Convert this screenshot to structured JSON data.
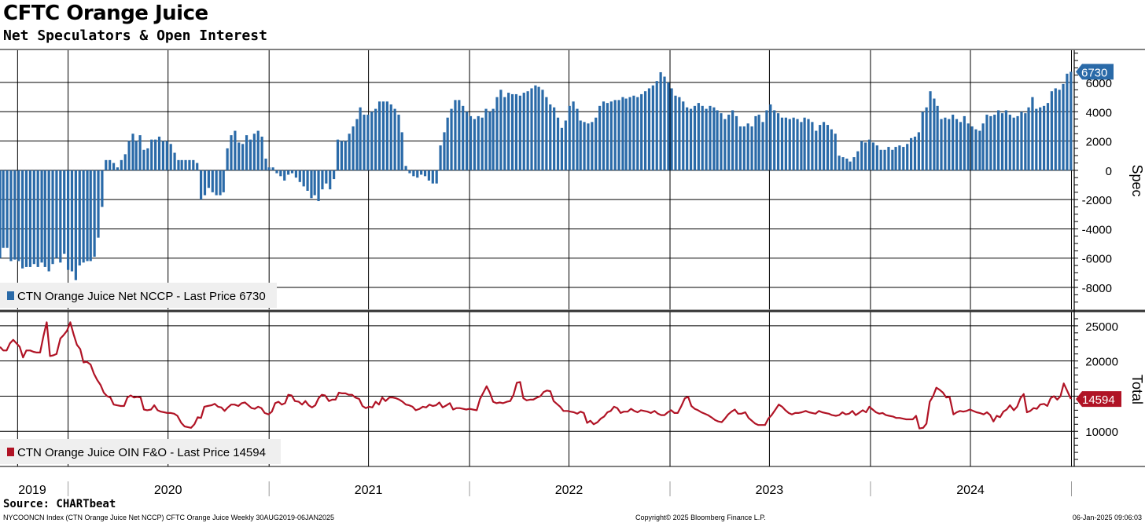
{
  "header": {
    "title": "CFTC Orange Juice",
    "subtitle": "Net Speculators & Open Interest"
  },
  "footer": {
    "source": "Source: CHARTbeat",
    "index_desc": "NYCOONCN Index (CTN Orange Juice Net NCCP) CFTC Orange Juice  Weekly 30AUG2019-06JAN2025",
    "copyright": "Copyright© 2025 Bloomberg Finance L.P.",
    "timestamp": "06-Jan-2025 09:06:03"
  },
  "colors": {
    "spec_bar": "#2a6aa8",
    "total_line": "#b01325",
    "grid": "#000000",
    "legend_bg": "#efefef"
  },
  "chart_data": [
    {
      "type": "bar",
      "ylabel": "Spec",
      "ylim": [
        -9500,
        8200
      ],
      "yticks": [
        -8000,
        -6000,
        -4000,
        -2000,
        0,
        2000,
        4000,
        6000
      ],
      "grid": true,
      "last_value_label": "6730",
      "legend": "CTN Orange Juice Net NCCP - Last Price 6730",
      "x_start": "2019-08-30",
      "x_end": "2025-01-06",
      "series": [
        {
          "name": "CTN Orange Juice Net NCCP",
          "frequency": "weekly",
          "values": [
            -6000,
            -5300,
            -5300,
            -6200,
            -6100,
            -6200,
            -6700,
            -6600,
            -6600,
            -6400,
            -6600,
            -6300,
            -6600,
            -6900,
            -6400,
            -6000,
            -6300,
            -5700,
            -6800,
            -6900,
            -7500,
            -6500,
            -6300,
            -6200,
            -6200,
            -5900,
            -4600,
            -2500,
            700,
            700,
            500,
            200,
            700,
            1100,
            2000,
            2500,
            2000,
            2400,
            1400,
            1500,
            2100,
            2100,
            2300,
            2000,
            2000,
            1800,
            1200,
            700,
            700,
            700,
            700,
            700,
            500,
            -2000,
            -1700,
            -1200,
            -1500,
            -1700,
            -1700,
            -1500,
            1500,
            2400,
            2700,
            1900,
            1800,
            2400,
            2100,
            2500,
            2700,
            2300,
            800,
            200,
            200,
            -200,
            -400,
            -700,
            -300,
            -200,
            -500,
            -800,
            -1100,
            -1400,
            -1900,
            -1700,
            -2100,
            -1300,
            -900,
            -1300,
            -600,
            2100,
            2000,
            2000,
            2500,
            3000,
            3500,
            4300,
            3800,
            3800,
            4000,
            4200,
            4700,
            4700,
            4700,
            4500,
            4200,
            3800,
            2600,
            300,
            -200,
            -400,
            -500,
            -300,
            -400,
            -700,
            -900,
            -900,
            1700,
            2600,
            3600,
            4200,
            4800,
            4800,
            4400,
            4000,
            3700,
            3500,
            3700,
            3600,
            4200,
            4000,
            4200,
            5000,
            5500,
            5000,
            5300,
            5200,
            5200,
            5100,
            5300,
            5400,
            5600,
            5800,
            5700,
            5500,
            5000,
            4500,
            4300,
            3600,
            2900,
            3400,
            4400,
            4700,
            4200,
            3400,
            3300,
            3200,
            3300,
            3600,
            4400,
            4700,
            4600,
            4700,
            4800,
            4800,
            5000,
            4900,
            5000,
            5100,
            5000,
            5200,
            5400,
            5600,
            5800,
            6100,
            6700,
            6400,
            6000,
            5600,
            5100,
            5000,
            4700,
            4300,
            4200,
            4400,
            4600,
            4400,
            4200,
            4400,
            4300,
            4100,
            3900,
            3500,
            3800,
            4100,
            3700,
            3000,
            3000,
            3200,
            3000,
            3700,
            3800,
            3300,
            4100,
            4500,
            4100,
            3900,
            3600,
            3600,
            3500,
            3600,
            3500,
            3300,
            3600,
            3500,
            3300,
            2700,
            3100,
            3300,
            3100,
            2800,
            2500,
            1000,
            900,
            800,
            600,
            900,
            1300,
            2000,
            1900,
            2100,
            1900,
            1700,
            1400,
            1400,
            1600,
            1400,
            1600,
            1700,
            1600,
            1800,
            2200,
            2300,
            2600,
            4000,
            4300,
            5400,
            4900,
            4400,
            3500,
            3600,
            3500,
            3800,
            3500,
            3300,
            3700,
            3200,
            3000,
            2800,
            2700,
            3200,
            3800,
            3700,
            3800,
            4100,
            3900,
            4100,
            3800,
            3600,
            3700,
            4000,
            3900,
            4300,
            5000,
            4200,
            4300,
            4400,
            4600,
            5400,
            5600,
            5500,
            5900,
            6600,
            6730
          ]
        }
      ]
    },
    {
      "type": "line",
      "ylabel": "Total",
      "ylim": [
        5000,
        27000
      ],
      "yticks": [
        10000,
        15000,
        20000,
        25000
      ],
      "grid": true,
      "last_value_label": "14594",
      "legend": "CTN Orange Juice OIN F&O - Last Price 14594",
      "x_start": "2019-08-30",
      "x_end": "2025-01-06",
      "series": [
        {
          "name": "CTN Orange Juice OIN F&O",
          "frequency": "weekly",
          "values": [
            22000,
            21500,
            21500,
            22500,
            23000,
            22500,
            22000,
            20500,
            21500,
            21500,
            21300,
            21200,
            21200,
            23500,
            25500,
            20700,
            20800,
            21000,
            23200,
            23700,
            24300,
            25500,
            23800,
            22300,
            21700,
            19800,
            19900,
            19500,
            18200,
            17300,
            16600,
            15500,
            15000,
            14800,
            13800,
            13700,
            13600,
            13600,
            14800,
            15100,
            14800,
            14900,
            14800,
            13100,
            13000,
            13100,
            13700,
            13000,
            12800,
            12700,
            12600,
            12600,
            12500,
            12200,
            11200,
            10700,
            10600,
            10500,
            11000,
            12000,
            11900,
            13500,
            13600,
            13700,
            13900,
            13500,
            13400,
            12900,
            13400,
            13800,
            13800,
            13600,
            14000,
            14100,
            13700,
            13300,
            13200,
            13500,
            13300,
            12600,
            12400,
            12800,
            14000,
            14200,
            13800,
            14000,
            15200,
            15100,
            14300,
            14200,
            13800,
            14300,
            13700,
            13400,
            13700,
            14700,
            15200,
            15100,
            14300,
            14500,
            14500,
            15500,
            15400,
            15400,
            15200,
            15200,
            14800,
            14600,
            13600,
            13300,
            13500,
            13400,
            14200,
            13800,
            14800,
            14300,
            14800,
            14800,
            14700,
            14500,
            14200,
            13800,
            13700,
            13500,
            13000,
            13200,
            13500,
            13400,
            13800,
            13600,
            13700,
            14100,
            13400,
            13700,
            14000,
            13100,
            13300,
            13300,
            13200,
            13100,
            13200,
            13100,
            13000,
            14600,
            15500,
            16400,
            15500,
            14200,
            14000,
            14100,
            14000,
            14200,
            14300,
            15200,
            16900,
            17000,
            14700,
            14400,
            14500,
            14500,
            14800,
            15000,
            15600,
            15800,
            15700,
            14300,
            13900,
            13500,
            12900,
            12900,
            12800,
            12700,
            12500,
            12800,
            12600,
            11200,
            11500,
            11000,
            11300,
            11800,
            12100,
            12700,
            12900,
            13500,
            13300,
            12600,
            12800,
            12800,
            13200,
            12900,
            12700,
            13000,
            12900,
            12800,
            12600,
            12900,
            12500,
            12300,
            12300,
            12700,
            13000,
            12600,
            12600,
            13500,
            14700,
            14900,
            13600,
            13200,
            13000,
            12700,
            12500,
            12300,
            12000,
            11600,
            11400,
            11300,
            11800,
            12400,
            12800,
            13100,
            12500,
            12500,
            12700,
            11900,
            11500,
            11100,
            10900,
            10900,
            10900,
            11800,
            12300,
            13100,
            13800,
            13500,
            13000,
            12600,
            12400,
            12600,
            12600,
            12700,
            12900,
            12700,
            12600,
            12500,
            12900,
            12700,
            12600,
            12500,
            12300,
            12200,
            12300,
            12700,
            12400,
            12500,
            12900,
            12300,
            12600,
            13000,
            12700,
            13500,
            13100,
            12700,
            12500,
            12600,
            12300,
            12200,
            12100,
            11900,
            11900,
            11800,
            11700,
            11700,
            11700,
            12200,
            10400,
            10500,
            11100,
            14200,
            15000,
            16200,
            15900,
            15500,
            14800,
            14900,
            12400,
            12700,
            12900,
            12800,
            12900,
            13100,
            12900,
            12700,
            12600,
            12400,
            12700,
            12300,
            11400,
            12200,
            12000,
            12800,
            13100,
            13700,
            13000,
            13500,
            14700,
            15300,
            12700,
            12900,
            13300,
            13200,
            13800,
            13900,
            13600,
            14700,
            15000,
            14500,
            15000,
            16800,
            15800,
            14594
          ]
        }
      ]
    }
  ],
  "x_axis": {
    "year_labels": [
      {
        "label": "2019",
        "date": "2019-12-15"
      },
      {
        "label": "2020",
        "date": "2020-07-01"
      },
      {
        "label": "2021",
        "date": "2021-07-01"
      },
      {
        "label": "2022",
        "date": "2022-07-01"
      },
      {
        "label": "2023",
        "date": "2023-07-01"
      },
      {
        "label": "2024",
        "date": "2024-07-01"
      }
    ],
    "year_boundaries": [
      "2020-01-01",
      "2021-01-01",
      "2022-01-01",
      "2023-01-01",
      "2024-01-01",
      "2025-01-01"
    ]
  }
}
